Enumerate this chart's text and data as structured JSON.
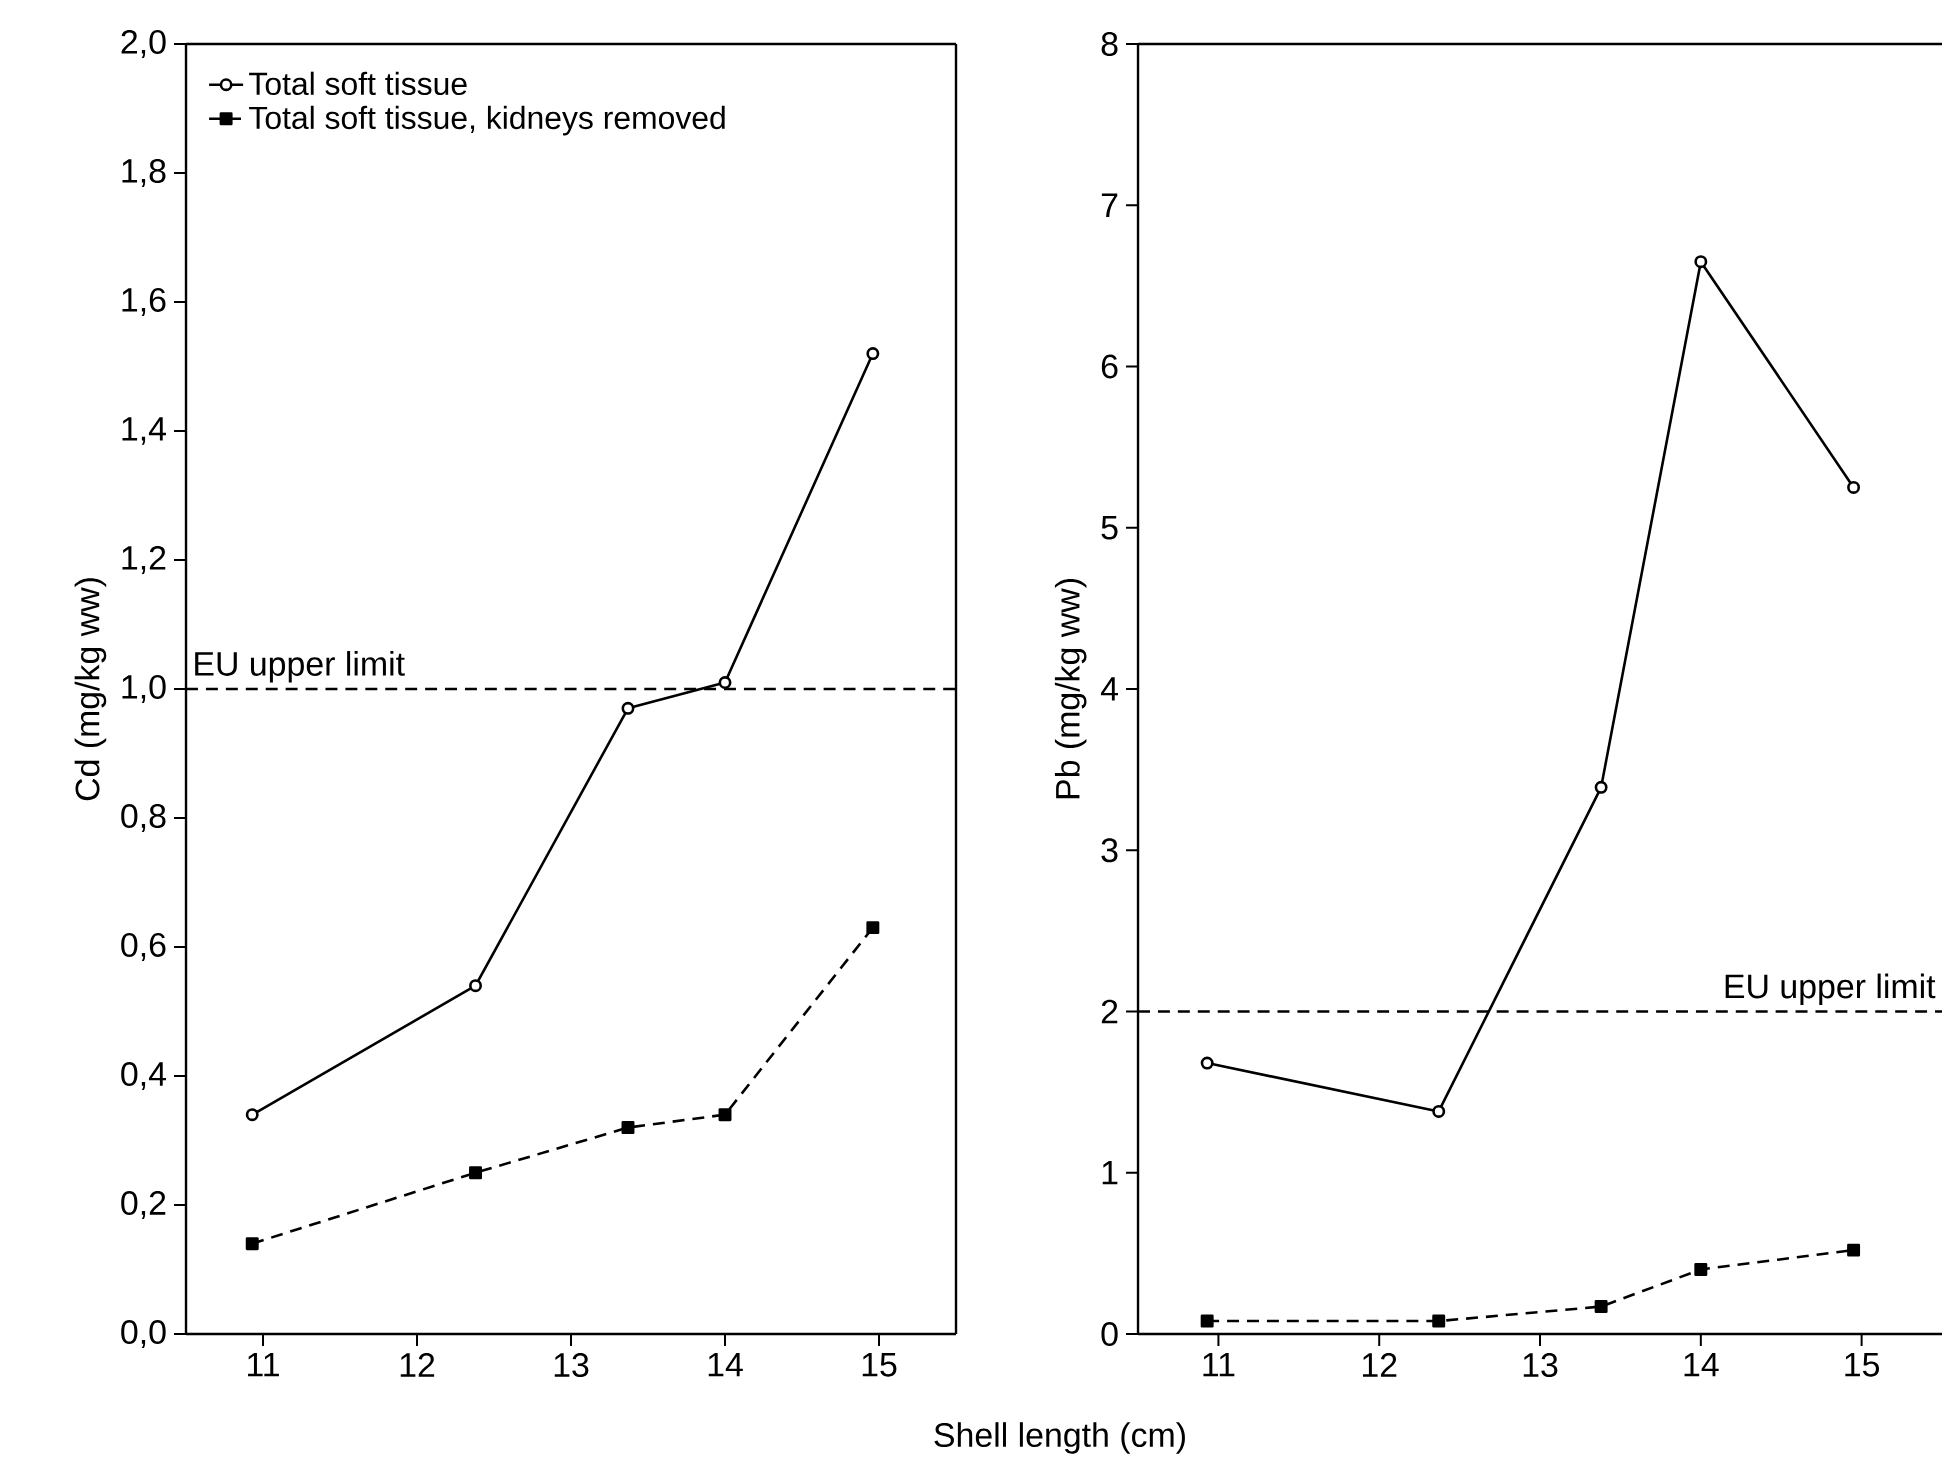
{
  "chart_data": [
    {
      "type": "line",
      "xlabel": "Shell length (cm)",
      "ylabel": "Cd (mg/kg ww)",
      "xlim": [
        10.5,
        15.5
      ],
      "xticks": [
        11,
        12,
        13,
        14,
        15
      ],
      "ylim": [
        0,
        2.0
      ],
      "yticks": [
        {
          "value": 0,
          "label": "0,0"
        },
        {
          "value": 0.2,
          "label": "0,2"
        },
        {
          "value": 0.4,
          "label": "0,4"
        },
        {
          "value": 0.6,
          "label": "0,6"
        },
        {
          "value": 0.8,
          "label": "0,8"
        },
        {
          "value": 1.0,
          "label": "1,0"
        },
        {
          "value": 1.2,
          "label": "1,2"
        },
        {
          "value": 1.4,
          "label": "1,4"
        },
        {
          "value": 1.6,
          "label": "1,6"
        },
        {
          "value": 1.8,
          "label": "1,8"
        },
        {
          "value": 2.0,
          "label": "2,0"
        }
      ],
      "x": [
        10.93,
        12.38,
        13.37,
        14.0,
        14.96
      ],
      "series": [
        {
          "name": "Total soft tissue",
          "color": "#000000",
          "marker": "circle",
          "line_style": "solid",
          "values": [
            0.34,
            0.54,
            0.97,
            1.01,
            1.52
          ]
        },
        {
          "name": "Total soft tissue, kidneys removed",
          "color": "#000000",
          "marker": "square",
          "line_style": "dashed",
          "values": [
            0.14,
            0.25,
            0.32,
            0.34,
            0.63
          ]
        }
      ],
      "ref_lines": [
        {
          "axis": "y",
          "value": 1.0,
          "label": "EU upper limit",
          "line_style": "dashed",
          "color": "#000000"
        }
      ],
      "legend": "top left",
      "grid": false
    },
    {
      "type": "line",
      "ylabel": "Pb (mg/kg ww)",
      "xlim": [
        10.5,
        15.5
      ],
      "xticks": [
        11,
        12,
        13,
        14,
        15
      ],
      "ylim": [
        0,
        8
      ],
      "yticks": [
        0,
        1,
        2,
        3,
        4,
        5,
        6,
        7,
        8
      ],
      "x": [
        10.93,
        12.37,
        13.38,
        14.0,
        14.95
      ],
      "series": [
        {
          "color": "#000000",
          "marker": "circle",
          "line_style": "solid",
          "values": [
            1.68,
            1.38,
            3.39,
            6.65,
            5.25
          ]
        },
        {
          "color": "#000000",
          "marker": "square",
          "line_style": "dashed",
          "values": [
            0.08,
            0.08,
            0.17,
            0.4,
            0.52
          ]
        }
      ],
      "ref_lines": [
        {
          "axis": "y",
          "value": 2,
          "label": "EU upper limit",
          "line_style": "dashed",
          "color": "#000000"
        }
      ],
      "legend": false,
      "grid": false
    }
  ]
}
